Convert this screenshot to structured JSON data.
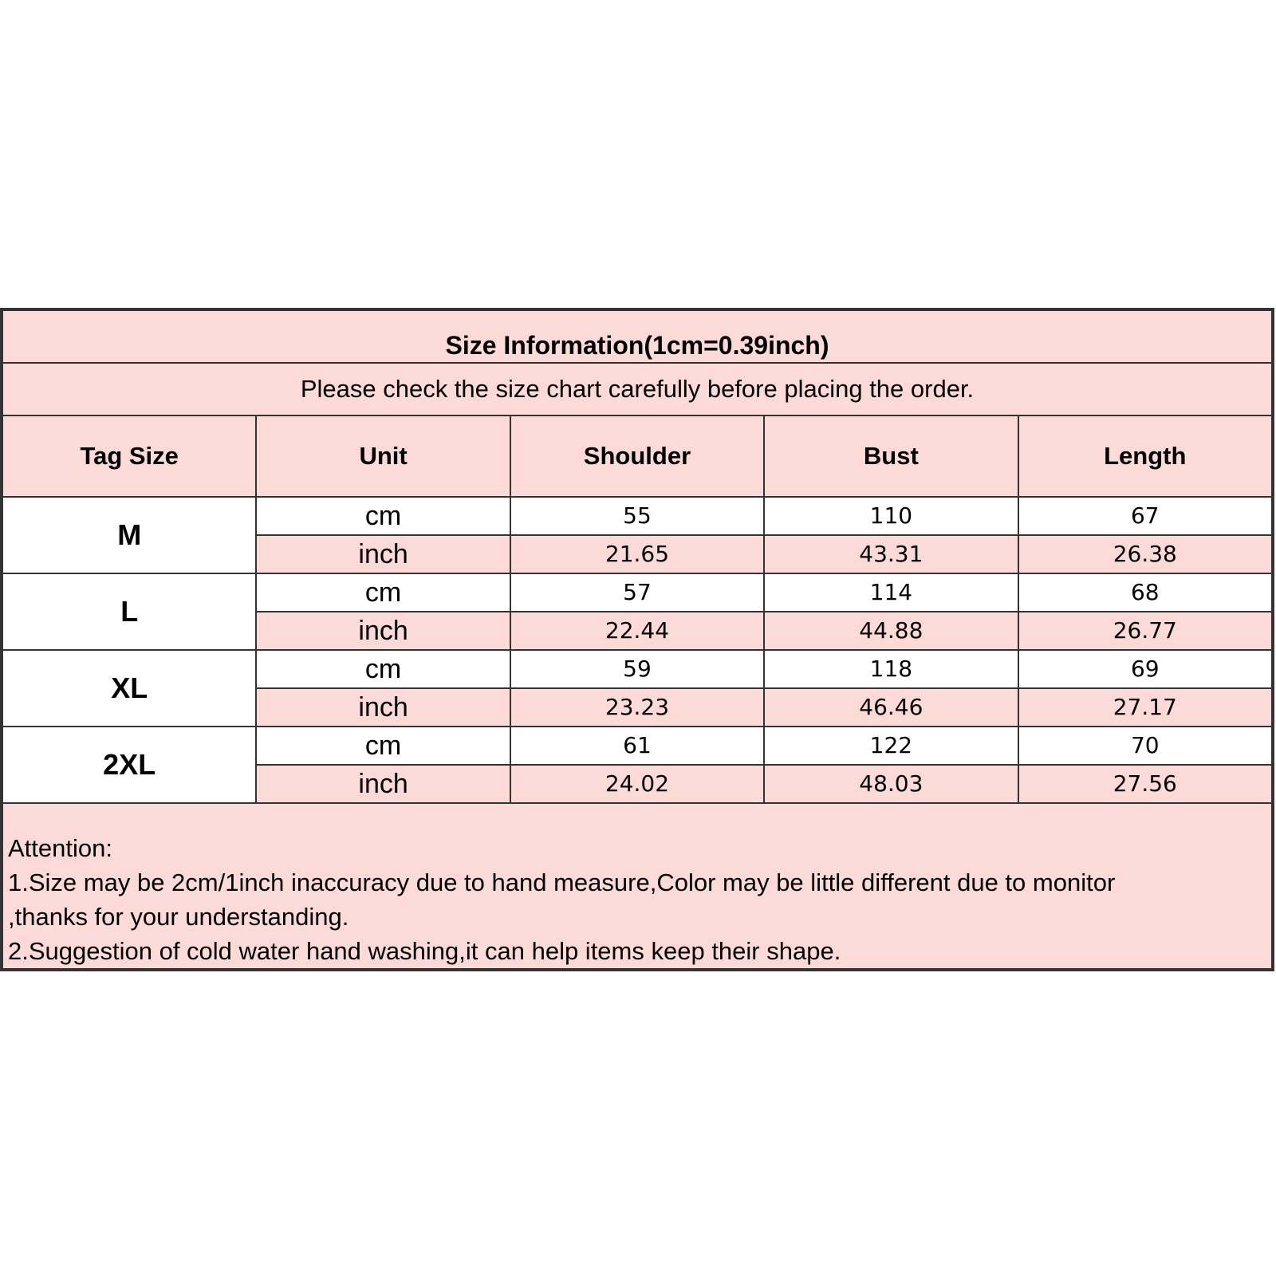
{
  "title": "Size Information(1cm=0.39inch)",
  "subtitle": "Please check the size chart carefully before placing the order.",
  "headers": [
    "Tag Size",
    "Unit",
    "Shoulder",
    "Bust",
    "Length"
  ],
  "rows": [
    {
      "size": "M",
      "cm": {
        "unit": "cm",
        "values": [
          "55",
          "110",
          "67"
        ]
      },
      "inch": {
        "unit": "inch",
        "values": [
          "21.65",
          "43.31",
          "26.38"
        ]
      }
    },
    {
      "size": "L",
      "cm": {
        "unit": "cm",
        "values": [
          "57",
          "114",
          "68"
        ]
      },
      "inch": {
        "unit": "inch",
        "values": [
          "22.44",
          "44.88",
          "26.77"
        ]
      }
    },
    {
      "size": "XL",
      "cm": {
        "unit": "cm",
        "values": [
          "59",
          "118",
          "69"
        ]
      },
      "inch": {
        "unit": "inch",
        "values": [
          "23.23",
          "46.46",
          "27.17"
        ]
      }
    },
    {
      "size": "2XL",
      "cm": {
        "unit": "cm",
        "values": [
          "61",
          "122",
          "70"
        ]
      },
      "inch": {
        "unit": "inch",
        "values": [
          "24.02",
          "48.03",
          "27.56"
        ]
      }
    }
  ],
  "notes": [
    "Attention:",
    "1.Size may be 2cm/1inch inaccuracy due to hand measure,Color may be little different due to monitor",
    ",thanks for your understanding.",
    "2.Suggestion of cold water hand washing,it can help items keep their shape."
  ],
  "colors": {
    "header_bg": "#fbdad8",
    "row_bg": "#ffffff",
    "border": "#333333"
  }
}
